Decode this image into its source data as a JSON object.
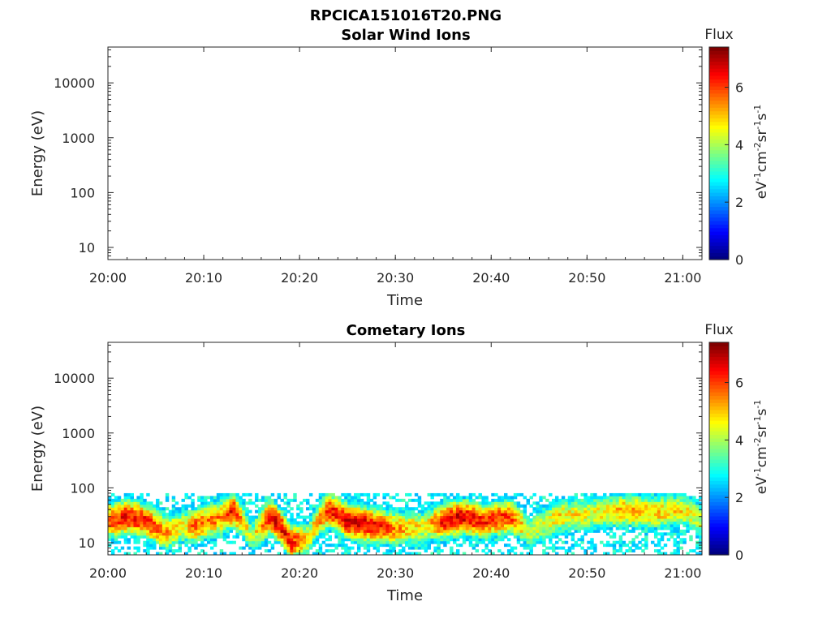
{
  "figure": {
    "title": "RPCICA151016T20.PNG"
  },
  "colors": {
    "axis": "#262626",
    "colormap": "jet"
  },
  "chart_data": [
    {
      "type": "heatmap",
      "title": "Solar Wind Ions",
      "xlabel": "Time",
      "ylabel": "Energy (eV)",
      "y_scale": "log",
      "ylim": [
        6,
        45000
      ],
      "xlim": [
        "20:00",
        "21:02"
      ],
      "x_ticks": [
        "20:00",
        "20:10",
        "20:20",
        "20:30",
        "20:40",
        "20:50",
        "21:00"
      ],
      "y_ticks": [
        "10",
        "100",
        "1000",
        "10000"
      ],
      "colorbar": {
        "title": "Flux",
        "unit_base": "eV",
        "unit_parts": [
          "eV",
          "-1",
          "cm",
          "-2",
          "sr",
          "-1",
          "s",
          "-1"
        ],
        "ticks": [
          "0",
          "2",
          "4",
          "6"
        ],
        "range": [
          0,
          7.4
        ]
      },
      "data": "empty (no flux recorded)"
    },
    {
      "type": "heatmap",
      "title": "Cometary Ions",
      "xlabel": "Time",
      "ylabel": "Energy (eV)",
      "y_scale": "log",
      "ylim": [
        6,
        45000
      ],
      "xlim": [
        "20:00",
        "21:02"
      ],
      "x_ticks": [
        "20:00",
        "20:10",
        "20:20",
        "20:30",
        "20:40",
        "20:50",
        "21:00"
      ],
      "y_ticks": [
        "10",
        "100",
        "1000",
        "10000"
      ],
      "colorbar": {
        "title": "Flux",
        "ticks": [
          "0",
          "2",
          "4",
          "6"
        ],
        "range": [
          0,
          7.4
        ]
      },
      "flux_profile": {
        "energy_range_eV": [
          6,
          80
        ],
        "samples": [
          {
            "t": "20:00",
            "peak_eV": 25,
            "flux": 6.0
          },
          {
            "t": "20:02",
            "peak_eV": 30,
            "flux": 6.5
          },
          {
            "t": "20:04",
            "peak_eV": 25,
            "flux": 6.3
          },
          {
            "t": "20:06",
            "peak_eV": 15,
            "flux": 5.5
          },
          {
            "t": "20:08",
            "peak_eV": 20,
            "flux": 4.5
          },
          {
            "t": "20:09",
            "peak_eV": 20,
            "flux": 5.8
          },
          {
            "t": "20:12",
            "peak_eV": 30,
            "flux": 5.5
          },
          {
            "t": "20:13",
            "peak_eV": 40,
            "flux": 6.5
          },
          {
            "t": "20:15",
            "peak_eV": 12,
            "flux": 4.0
          },
          {
            "t": "20:17",
            "peak_eV": 30,
            "flux": 6.8
          },
          {
            "t": "20:19",
            "peak_eV": 10,
            "flux": 6.5
          },
          {
            "t": "20:21",
            "peak_eV": 12,
            "flux": 4.5
          },
          {
            "t": "20:23",
            "peak_eV": 40,
            "flux": 6.2
          },
          {
            "t": "20:25",
            "peak_eV": 25,
            "flux": 6.8
          },
          {
            "t": "20:28",
            "peak_eV": 20,
            "flux": 6.5
          },
          {
            "t": "20:30",
            "peak_eV": 18,
            "flux": 5.5
          },
          {
            "t": "20:33",
            "peak_eV": 20,
            "flux": 4.5
          },
          {
            "t": "20:35",
            "peak_eV": 25,
            "flux": 6.5
          },
          {
            "t": "20:37",
            "peak_eV": 30,
            "flux": 6.8
          },
          {
            "t": "20:39",
            "peak_eV": 25,
            "flux": 6.3
          },
          {
            "t": "20:42",
            "peak_eV": 30,
            "flux": 6.0
          },
          {
            "t": "20:44",
            "peak_eV": 15,
            "flux": 4.2
          },
          {
            "t": "20:47",
            "peak_eV": 30,
            "flux": 4.8
          },
          {
            "t": "20:51",
            "peak_eV": 35,
            "flux": 4.5
          },
          {
            "t": "20:54",
            "peak_eV": 40,
            "flux": 5.2
          },
          {
            "t": "20:57",
            "peak_eV": 35,
            "flux": 5.0
          },
          {
            "t": "21:00",
            "peak_eV": 40,
            "flux": 4.8
          },
          {
            "t": "21:02",
            "peak_eV": 25,
            "flux": 4.2
          }
        ]
      }
    }
  ]
}
